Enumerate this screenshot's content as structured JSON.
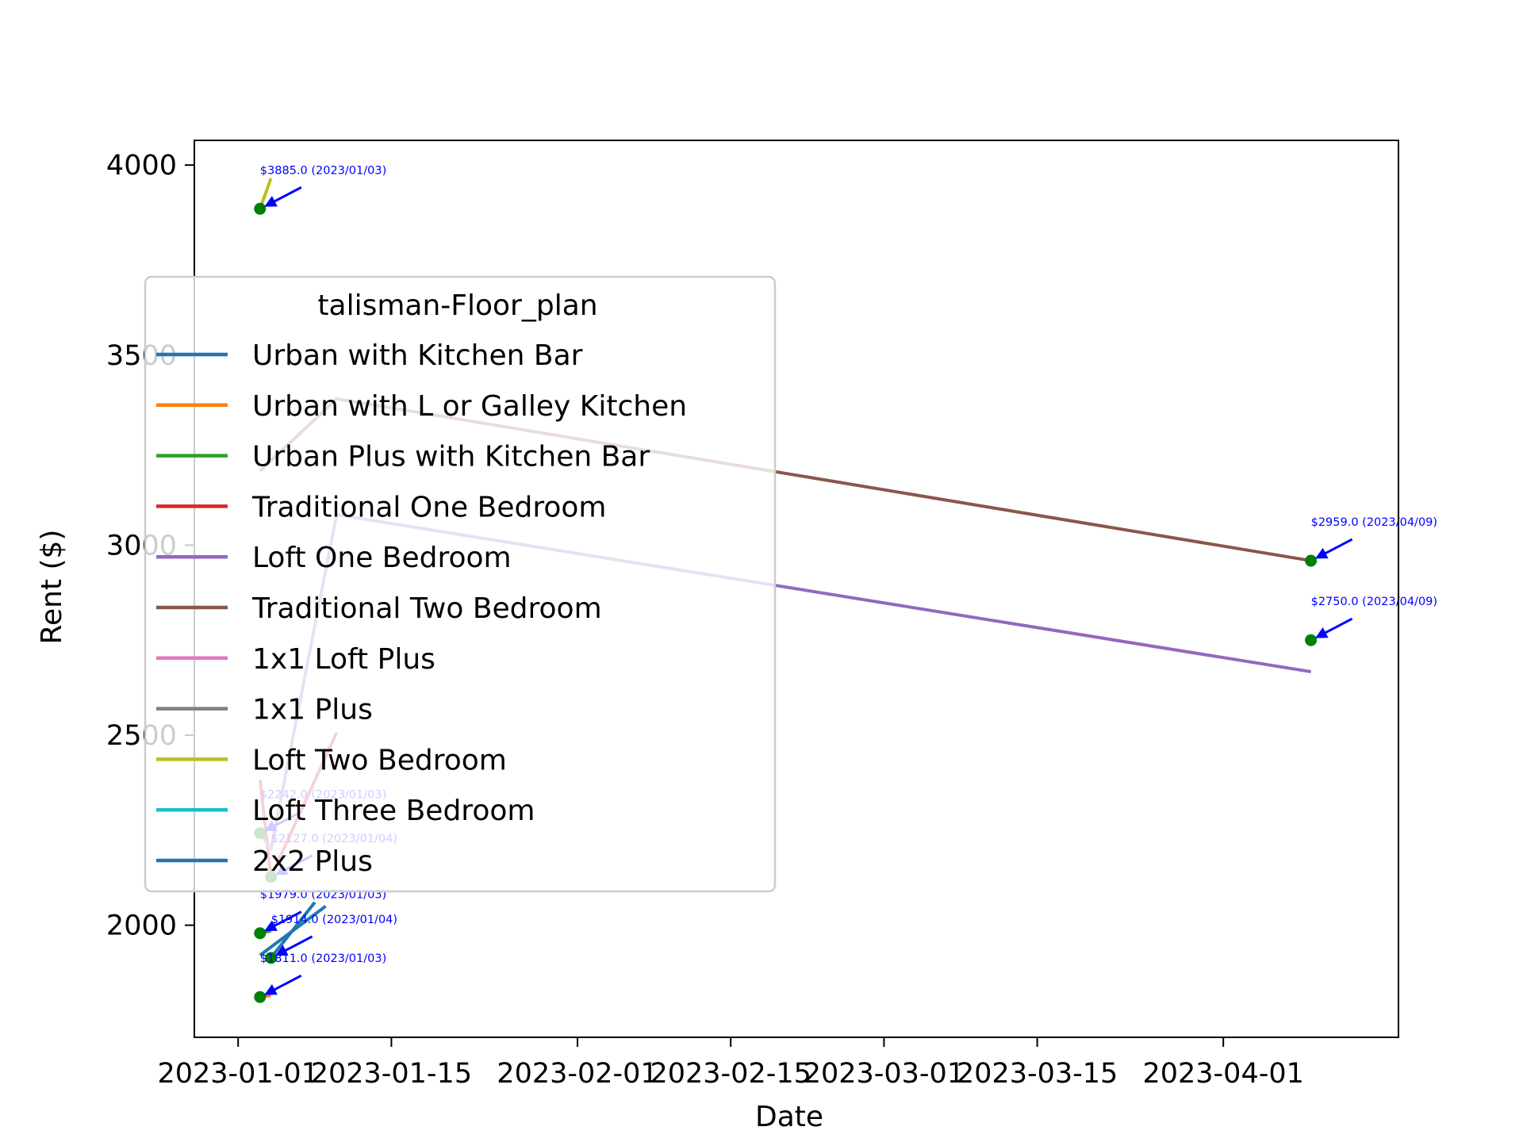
{
  "chart_data": {
    "type": "line",
    "xlabel": "Date",
    "ylabel": "Rent ($)",
    "x_axis": {
      "min": "2022-12-28",
      "max": "2023-04-17",
      "ticks": [
        "2023-01-01",
        "2023-01-15",
        "2023-02-01",
        "2023-02-15",
        "2023-03-01",
        "2023-03-15",
        "2023-04-01"
      ]
    },
    "y_axis": {
      "min": 1705,
      "max": 4065,
      "ticks": [
        2000,
        2500,
        3000,
        3500,
        4000
      ]
    },
    "grid": false,
    "legend": {
      "title": "talisman-Floor_plan",
      "position": "center-left"
    },
    "series": [
      {
        "name": "Urban with Kitchen Bar",
        "color": "#1f77b4",
        "points": [
          [
            "2023-01-03",
            1921
          ],
          [
            "2023-01-09",
            2050
          ]
        ]
      },
      {
        "name": "Urban with L or Galley Kitchen",
        "color": "#ff7f0e",
        "points": [
          [
            "2023-01-03",
            1811
          ],
          [
            "2023-01-04",
            1815
          ]
        ]
      },
      {
        "name": "Urban Plus with Kitchen Bar",
        "color": "#2ca02c",
        "points": [
          [
            "2023-01-03",
            1979
          ],
          [
            "2023-01-04",
            1985
          ]
        ]
      },
      {
        "name": "Traditional One Bedroom",
        "color": "#d62728",
        "points": [
          [
            "2023-01-03",
            2383
          ],
          [
            "2023-01-04",
            2127
          ],
          [
            "2023-01-10",
            2507
          ]
        ]
      },
      {
        "name": "Loft One Bedroom",
        "color": "#9467bd",
        "points": [
          [
            "2023-01-03",
            2242
          ],
          [
            "2023-01-04",
            2200
          ],
          [
            "2023-01-10",
            3080
          ],
          [
            "2023-04-09",
            2667
          ]
        ]
      },
      {
        "name": "Traditional Two Bedroom",
        "color": "#8c564b",
        "points": [
          [
            "2023-01-03",
            3195
          ],
          [
            "2023-01-10",
            3385
          ],
          [
            "2023-04-09",
            2959
          ]
        ]
      },
      {
        "name": "1x1 Loft Plus",
        "color": "#e377c2",
        "points": []
      },
      {
        "name": "1x1 Plus",
        "color": "#7f7f7f",
        "points": []
      },
      {
        "name": "Loft Two Bedroom",
        "color": "#bcbd22",
        "points": [
          [
            "2023-01-03",
            3885
          ],
          [
            "2023-01-04",
            3965
          ]
        ]
      },
      {
        "name": "Loft Three Bedroom",
        "color": "#17becf",
        "points": []
      },
      {
        "name": "2x2 Plus",
        "color": "#1f77b4",
        "points": [
          [
            "2023-01-04",
            1914
          ],
          [
            "2023-01-08",
            2060
          ]
        ]
      }
    ],
    "markers": [
      {
        "date": "2023-01-03",
        "value": 3885,
        "label": "$3885.0 (2023/01/03)"
      },
      {
        "date": "2023-01-03",
        "value": 2242,
        "label": "$2242.0 (2023/01/03)"
      },
      {
        "date": "2023-01-04",
        "value": 2127,
        "label": "$2127.0 (2023/01/04)"
      },
      {
        "date": "2023-01-03",
        "value": 1979,
        "label": "$1979.0 (2023/01/03)"
      },
      {
        "date": "2023-01-04",
        "value": 1914,
        "label": "$1914.0 (2023/01/04)"
      },
      {
        "date": "2023-01-03",
        "value": 1811,
        "label": "$1811.0 (2023/01/03)"
      },
      {
        "date": "2023-04-09",
        "value": 2959,
        "label": "$2959.0 (2023/04/09)"
      },
      {
        "date": "2023-04-09",
        "value": 2750,
        "label": "$2750.0 (2023/04/09)"
      }
    ],
    "marker_color": "#008000",
    "annotation_color": "#0000ff"
  }
}
